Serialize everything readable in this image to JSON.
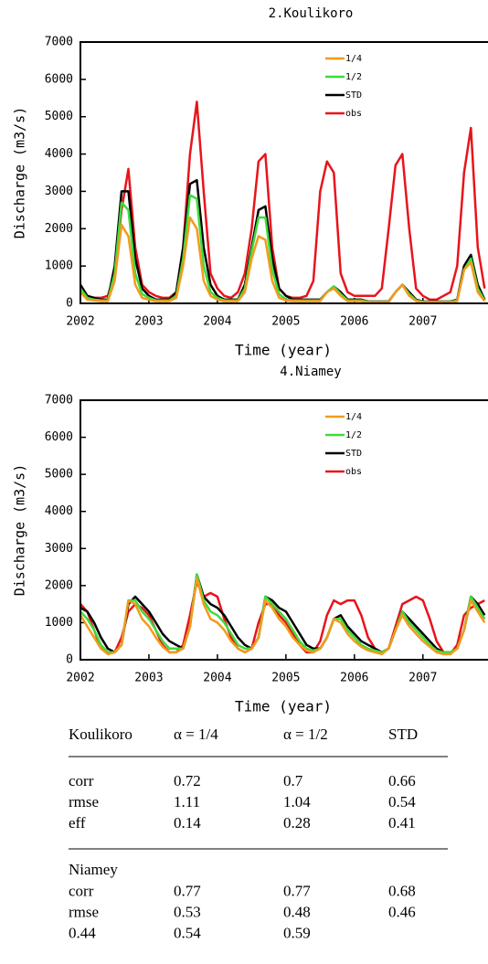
{
  "chart_data": [
    {
      "type": "line",
      "title": "2.Koulikoro",
      "xlabel": "Time (year)",
      "ylabel": "Discharge (m3/s)",
      "x": [
        2002,
        2002.1,
        2002.2,
        2002.3,
        2002.4,
        2002.5,
        2002.6,
        2002.7,
        2002.8,
        2002.9,
        2003,
        2003.1,
        2003.2,
        2003.3,
        2003.4,
        2003.5,
        2003.6,
        2003.7,
        2003.8,
        2003.9,
        2004,
        2004.1,
        2004.2,
        2004.3,
        2004.4,
        2004.5,
        2004.6,
        2004.7,
        2004.8,
        2004.9,
        2005,
        2005.1,
        2005.2,
        2005.3,
        2005.4,
        2005.5,
        2005.6,
        2005.7,
        2005.8,
        2005.9,
        2006,
        2006.1,
        2006.2,
        2006.3,
        2006.4,
        2006.5,
        2006.6,
        2006.7,
        2006.8,
        2006.9,
        2007,
        2007.1,
        2007.2,
        2007.3,
        2007.4,
        2007.5,
        2007.6,
        2007.7,
        2007.8,
        2007.9
      ],
      "xlim": [
        2002,
        2007.95
      ],
      "xticks": [
        2002,
        2003,
        2004,
        2005,
        2006,
        2007
      ],
      "ylim": [
        0,
        7000
      ],
      "yticks": [
        0,
        1000,
        2000,
        3000,
        4000,
        5000,
        6000,
        7000
      ],
      "series": [
        {
          "name": "1/4",
          "color": "#f39a1d",
          "values": [
            300,
            100,
            80,
            60,
            60,
            600,
            2100,
            1800,
            500,
            150,
            100,
            60,
            60,
            60,
            150,
            1000,
            2300,
            2000,
            600,
            200,
            100,
            60,
            60,
            60,
            300,
            1200,
            1800,
            1700,
            600,
            150,
            80,
            60,
            60,
            60,
            60,
            60,
            300,
            400,
            200,
            60,
            60,
            60,
            30,
            30,
            30,
            30,
            300,
            500,
            200,
            60,
            30,
            30,
            30,
            30,
            30,
            60,
            900,
            1100,
            300,
            60
          ]
        },
        {
          "name": "1/2",
          "color": "#3ddc3d",
          "values": [
            400,
            150,
            100,
            80,
            80,
            800,
            2700,
            2500,
            800,
            250,
            150,
            80,
            80,
            80,
            200,
            1200,
            2900,
            2800,
            1000,
            300,
            150,
            80,
            80,
            80,
            400,
            1400,
            2300,
            2300,
            900,
            250,
            100,
            80,
            80,
            80,
            80,
            80,
            300,
            450,
            250,
            80,
            80,
            80,
            40,
            40,
            40,
            40,
            300,
            500,
            250,
            80,
            40,
            40,
            40,
            40,
            40,
            80,
            900,
            1200,
            400,
            80
          ]
        },
        {
          "name": "STD",
          "color": "#000000",
          "values": [
            500,
            200,
            150,
            100,
            100,
            1000,
            3000,
            3000,
            1200,
            400,
            200,
            100,
            100,
            100,
            300,
            1500,
            3200,
            3300,
            1500,
            500,
            200,
            100,
            100,
            100,
            500,
            1500,
            2500,
            2600,
            1200,
            400,
            200,
            100,
            100,
            100,
            100,
            100,
            300,
            450,
            300,
            100,
            100,
            100,
            50,
            50,
            50,
            50,
            300,
            500,
            300,
            100,
            50,
            50,
            50,
            50,
            50,
            100,
            1000,
            1300,
            500,
            100
          ]
        },
        {
          "name": "obs",
          "color": "#e8141b",
          "values": [
            300,
            200,
            150,
            150,
            200,
            800,
            2500,
            3600,
            1500,
            500,
            300,
            200,
            150,
            150,
            300,
            1500,
            4000,
            5400,
            3000,
            800,
            400,
            200,
            150,
            300,
            800,
            2000,
            3800,
            4000,
            1500,
            400,
            200,
            150,
            150,
            200,
            600,
            3000,
            3800,
            3500,
            800,
            300,
            200,
            200,
            200,
            200,
            400,
            2000,
            3700,
            4000,
            2000,
            400,
            200,
            100,
            100,
            200,
            300,
            1000,
            3500,
            4700,
            1500,
            400
          ]
        }
      ]
    },
    {
      "type": "line",
      "title": "4.Niamey",
      "xlabel": "Time (year)",
      "ylabel": "Discharge (m3/s)",
      "x": [
        2002,
        2002.1,
        2002.2,
        2002.3,
        2002.4,
        2002.5,
        2002.6,
        2002.7,
        2002.8,
        2002.9,
        2003,
        2003.1,
        2003.2,
        2003.3,
        2003.4,
        2003.5,
        2003.6,
        2003.7,
        2003.8,
        2003.9,
        2004,
        2004.1,
        2004.2,
        2004.3,
        2004.4,
        2004.5,
        2004.6,
        2004.7,
        2004.8,
        2004.9,
        2005,
        2005.1,
        2005.2,
        2005.3,
        2005.4,
        2005.5,
        2005.6,
        2005.7,
        2005.8,
        2005.9,
        2006,
        2006.1,
        2006.2,
        2006.3,
        2006.4,
        2006.5,
        2006.6,
        2006.7,
        2006.8,
        2006.9,
        2007,
        2007.1,
        2007.2,
        2007.3,
        2007.4,
        2007.5,
        2007.6,
        2007.7,
        2007.8,
        2007.9
      ],
      "xlim": [
        2002,
        2007.95
      ],
      "xticks": [
        2002,
        2003,
        2004,
        2005,
        2006,
        2007
      ],
      "ylim": [
        0,
        7000
      ],
      "yticks": [
        0,
        1000,
        2000,
        3000,
        4000,
        5000,
        6000,
        7000
      ],
      "series": [
        {
          "name": "1/4",
          "color": "#f39a1d",
          "values": [
            1200,
            900,
            600,
            300,
            150,
            200,
            400,
            1600,
            1500,
            1100,
            900,
            600,
            350,
            200,
            200,
            300,
            900,
            2200,
            1500,
            1100,
            1000,
            800,
            500,
            300,
            200,
            300,
            600,
            1600,
            1400,
            1100,
            900,
            600,
            400,
            250,
            200,
            300,
            600,
            1100,
            1000,
            700,
            500,
            350,
            250,
            200,
            150,
            300,
            800,
            1200,
            900,
            700,
            500,
            350,
            200,
            150,
            150,
            300,
            800,
            1600,
            1300,
            1000
          ]
        },
        {
          "name": "1/2",
          "color": "#3ddc3d",
          "values": [
            1300,
            1100,
            800,
            400,
            200,
            200,
            400,
            1600,
            1600,
            1300,
            1100,
            800,
            500,
            300,
            300,
            300,
            900,
            2300,
            1600,
            1300,
            1200,
            1000,
            700,
            400,
            300,
            300,
            600,
            1700,
            1500,
            1300,
            1100,
            800,
            500,
            300,
            250,
            300,
            600,
            1100,
            1100,
            800,
            600,
            400,
            300,
            250,
            200,
            300,
            800,
            1300,
            1000,
            800,
            600,
            400,
            250,
            200,
            200,
            300,
            800,
            1700,
            1400,
            1100
          ]
        },
        {
          "name": "STD",
          "color": "#000000",
          "values": [
            1400,
            1300,
            1000,
            600,
            300,
            200,
            400,
            1500,
            1700,
            1500,
            1300,
            1000,
            700,
            500,
            400,
            300,
            900,
            2300,
            1700,
            1500,
            1400,
            1200,
            900,
            600,
            400,
            300,
            600,
            1700,
            1600,
            1400,
            1300,
            1000,
            700,
            400,
            300,
            300,
            600,
            1100,
            1200,
            900,
            700,
            500,
            400,
            300,
            200,
            300,
            800,
            1300,
            1100,
            900,
            700,
            500,
            300,
            200,
            200,
            300,
            800,
            1700,
            1500,
            1200
          ]
        },
        {
          "name": "obs",
          "color": "#e8141b",
          "values": [
            1500,
            1300,
            800,
            300,
            200,
            200,
            600,
            1300,
            1500,
            1400,
            1200,
            800,
            400,
            200,
            200,
            400,
            1200,
            2100,
            1700,
            1800,
            1700,
            1100,
            600,
            300,
            200,
            300,
            1000,
            1500,
            1500,
            1200,
            1000,
            700,
            400,
            200,
            200,
            500,
            1200,
            1600,
            1500,
            1600,
            1600,
            1200,
            600,
            300,
            200,
            300,
            900,
            1500,
            1600,
            1700,
            1600,
            1100,
            500,
            200,
            150,
            400,
            1200,
            1400,
            1500,
            1600
          ]
        }
      ]
    }
  ],
  "table": {
    "header": [
      "Koulikoro",
      "α = 1/4",
      "α = 1/2",
      "STD"
    ],
    "sections": [
      {
        "rows": [
          [
            "corr",
            0.72,
            0.7,
            0.66
          ],
          [
            "rmse",
            1.11,
            1.04,
            0.54
          ],
          [
            "eff",
            0.14,
            0.28,
            0.41
          ]
        ]
      },
      {
        "title": "Niamey",
        "rows": [
          [
            "corr",
            0.77,
            0.77,
            0.68
          ],
          [
            "rmse",
            0.53,
            0.48,
            0.46
          ],
          [
            0.44,
            0.54,
            0.59
          ]
        ]
      }
    ]
  }
}
